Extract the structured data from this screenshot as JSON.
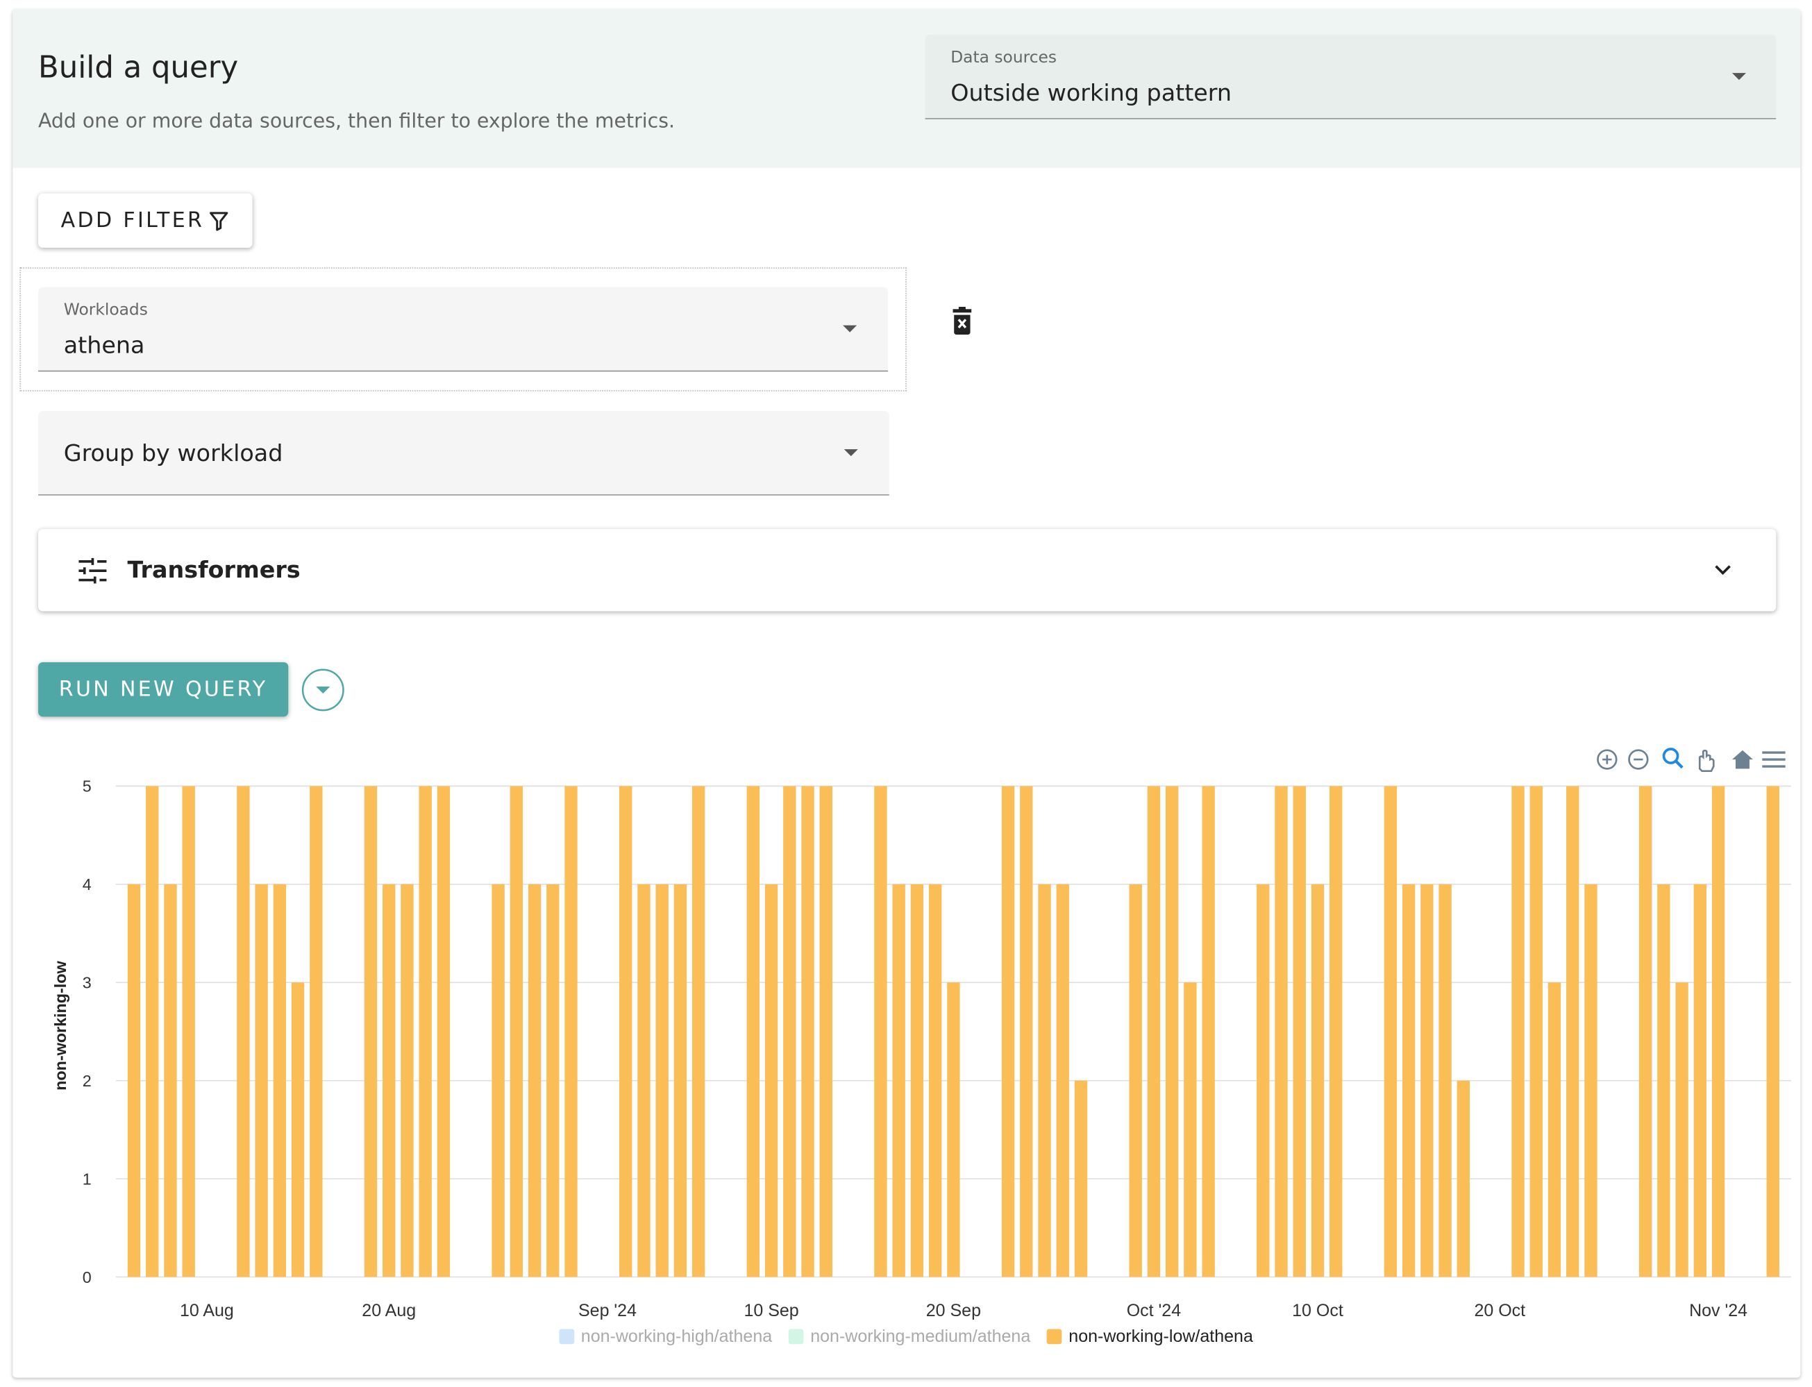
{
  "header": {
    "title": "Build a query",
    "subtitle": "Add one or more data sources, then filter to explore the metrics."
  },
  "data_sources": {
    "label": "Data sources",
    "value": "Outside working pattern"
  },
  "add_filter": "ADD FILTER",
  "filter": {
    "label": "Workloads",
    "value": "athena"
  },
  "group_by": "Group by workload",
  "transformers": "Transformers",
  "run_query": "RUN NEW QUERY",
  "chart_data": {
    "type": "bar",
    "y_label": "non-working-low",
    "x": [
      "2024-08-06",
      "2024-08-07",
      "2024-08-08",
      "2024-08-09",
      "2024-08-12",
      "2024-08-13",
      "2024-08-14",
      "2024-08-15",
      "2024-08-16",
      "2024-08-19",
      "2024-08-20",
      "2024-08-21",
      "2024-08-22",
      "2024-08-23",
      "2024-08-26",
      "2024-08-27",
      "2024-08-28",
      "2024-08-29",
      "2024-08-30",
      "2024-09-02",
      "2024-09-03",
      "2024-09-04",
      "2024-09-05",
      "2024-09-06",
      "2024-09-09",
      "2024-09-10",
      "2024-09-11",
      "2024-09-12",
      "2024-09-13",
      "2024-09-16",
      "2024-09-17",
      "2024-09-18",
      "2024-09-19",
      "2024-09-20",
      "2024-09-23",
      "2024-09-24",
      "2024-09-25",
      "2024-09-26",
      "2024-09-27",
      "2024-09-30",
      "2024-10-01",
      "2024-10-02",
      "2024-10-03",
      "2024-10-04",
      "2024-10-07",
      "2024-10-08",
      "2024-10-09",
      "2024-10-10",
      "2024-10-11",
      "2024-10-14",
      "2024-10-15",
      "2024-10-16",
      "2024-10-17",
      "2024-10-18",
      "2024-10-21",
      "2024-10-22",
      "2024-10-23",
      "2024-10-24",
      "2024-10-25",
      "2024-10-28",
      "2024-10-29",
      "2024-10-30",
      "2024-10-31",
      "2024-11-01",
      "2024-11-04"
    ],
    "series": [
      {
        "name": "non-working-high/athena",
        "color": "#cfe3fa",
        "visible": false
      },
      {
        "name": "non-working-medium/athena",
        "color": "#d3f5e6",
        "visible": false
      },
      {
        "name": "non-working-low/athena",
        "color": "#fbbd56",
        "visible": true,
        "values": [
          4,
          5,
          4,
          5,
          5,
          4,
          4,
          3,
          5,
          5,
          4,
          4,
          5,
          5,
          4,
          5,
          4,
          4,
          5,
          5,
          4,
          4,
          4,
          5,
          5,
          4,
          5,
          5,
          5,
          5,
          4,
          4,
          4,
          3,
          5,
          5,
          4,
          4,
          2,
          4,
          5,
          5,
          3,
          5,
          4,
          5,
          5,
          4,
          5,
          5,
          4,
          4,
          4,
          2,
          5,
          5,
          3,
          5,
          4,
          5,
          4,
          3,
          4,
          5,
          5
        ]
      }
    ],
    "xlim": [
      "2024-08-05",
      "2024-11-05"
    ],
    "xticks": [
      {
        "value": "2024-08-10",
        "label": "10 Aug"
      },
      {
        "value": "2024-08-20",
        "label": "20 Aug"
      },
      {
        "value": "2024-09-01",
        "label": "Sep '24"
      },
      {
        "value": "2024-09-10",
        "label": "10 Sep"
      },
      {
        "value": "2024-09-20",
        "label": "20 Sep"
      },
      {
        "value": "2024-10-01",
        "label": "Oct '24"
      },
      {
        "value": "2024-10-10",
        "label": "10 Oct"
      },
      {
        "value": "2024-10-20",
        "label": "20 Oct"
      },
      {
        "value": "2024-11-01",
        "label": "Nov '24"
      }
    ],
    "ylim": [
      0,
      5
    ],
    "yticks": [
      0,
      1,
      2,
      3,
      4,
      5
    ],
    "grid": true
  }
}
